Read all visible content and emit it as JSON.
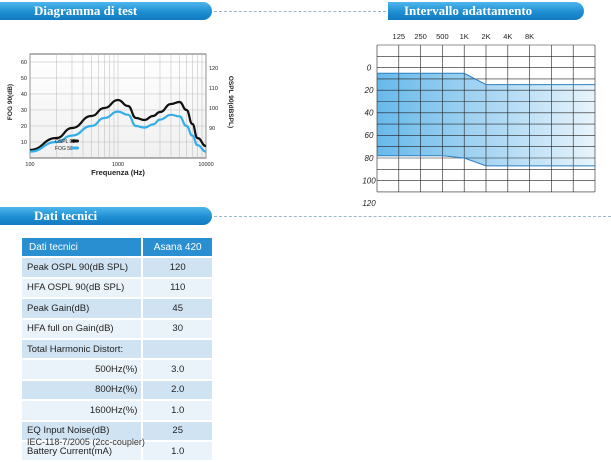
{
  "sections": {
    "test_diagram": "Diagramma di test",
    "adaptation_range": "Intervallo adattamento",
    "technical_data": "Dati tecnici"
  },
  "test_chart": {
    "left_axis_label": "FOG 90(dB)",
    "right_axis_label": "OSPL 90(dBSPL)",
    "x_axis_label": "Frequenza (Hz)",
    "x_ticks": [
      "100",
      "1000",
      "10000"
    ],
    "left_ticks": [
      "60",
      "50",
      "40",
      "30",
      "20",
      "10"
    ],
    "right_ticks": [
      "120",
      "110",
      "100",
      "90"
    ],
    "legend": [
      "OSPL 90",
      "FOG 50"
    ]
  },
  "audiogram": {
    "freq_labels": [
      "125",
      "250",
      "500",
      "1K",
      "2K",
      "4K",
      "8K"
    ],
    "level_labels": [
      "0",
      "20",
      "40",
      "60",
      "80",
      "100",
      "120"
    ]
  },
  "chart_data": [
    {
      "type": "line",
      "x": [
        100,
        200,
        300,
        500,
        700,
        1000,
        1300,
        1600,
        2000,
        2500,
        3000,
        4000,
        5000,
        6000,
        7000,
        8000,
        10000
      ],
      "series": [
        {
          "name": "OSPL 90",
          "unit": "dBSPL",
          "color": "#111111",
          "values": [
            79,
            85,
            90,
            96,
            100,
            104,
            101,
            95,
            94,
            96,
            98,
            102,
            103,
            99,
            92,
            85,
            81
          ]
        },
        {
          "name": "FOG 50",
          "unit": "dB",
          "color": "#33aee8",
          "values": [
            4,
            10,
            14,
            20,
            25,
            29,
            27,
            20,
            19,
            21,
            24,
            27,
            26,
            20,
            14,
            8,
            4
          ]
        }
      ],
      "xlabel": "Frequenza (Hz)",
      "ylabel": "FOG 90(dB)",
      "y2label": "OSPL 90(dBSPL)",
      "xscale": "log",
      "xlim": [
        100,
        10000
      ],
      "ylim": [
        0,
        65
      ],
      "y2lim": [
        75,
        127
      ],
      "legend": "bottom-left",
      "grid": true
    },
    {
      "type": "area",
      "categories": [
        "125",
        "250",
        "500",
        "1K",
        "2K",
        "4K",
        "8K"
      ],
      "series": [
        {
          "values": [
            5,
            5,
            5,
            5,
            15,
            15,
            15
          ]
        },
        {
          "values": [
            78,
            78,
            78,
            80,
            87,
            87,
            87
          ]
        }
      ],
      "ylim": [
        0,
        120
      ],
      "y_inverted": true,
      "grid": true,
      "fill_color": "#5fb6ea"
    }
  ],
  "tech_table": {
    "header": {
      "label": "Dati tecnici",
      "model": "Asana 420"
    },
    "rows": [
      {
        "label": "Peak OSPL 90(dB SPL)",
        "value": "120"
      },
      {
        "label": "HFA OSPL 90(dB SPL)",
        "value": "110"
      },
      {
        "label": "Peak Gain(dB)",
        "value": "45"
      },
      {
        "label": "HFA  full on Gain(dB)",
        "value": "30"
      },
      {
        "label": "Total Harmonic Distort:",
        "value": ""
      },
      {
        "label": "500Hz(%)",
        "value": "3.0"
      },
      {
        "label": "800Hz(%)",
        "value": "2.0"
      },
      {
        "label": "1600Hz(%)",
        "value": "1.0"
      },
      {
        "label": "EQ Input Noise(dB)",
        "value": "25"
      },
      {
        "label": "Battery Current(mA)",
        "value": "1.0"
      }
    ],
    "footnote": "IEC-118-7/2005 (2cc-coupler)"
  }
}
